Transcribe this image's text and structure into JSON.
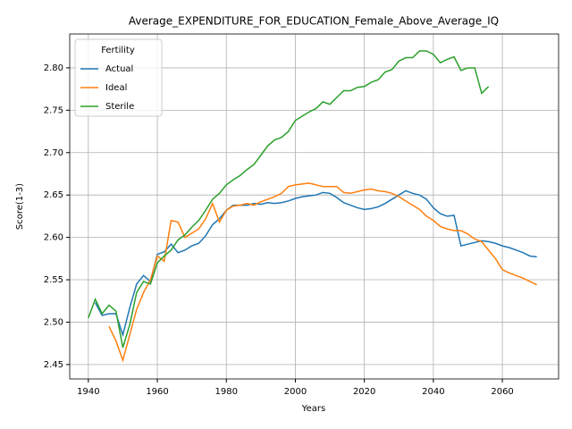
{
  "chart_data": {
    "type": "line",
    "title": "Average_EXPENDITURE_FOR_EDUCATION_Female_Above_Average_IQ",
    "x_label": "Years",
    "y_label": "Score(1-3)",
    "legend_title": "Fertility",
    "legend_loc": "upper left",
    "grid": true,
    "x": [
      1940,
      1942,
      1944,
      1946,
      1948,
      1950,
      1952,
      1954,
      1956,
      1958,
      1960,
      1962,
      1964,
      1966,
      1968,
      1970,
      1972,
      1974,
      1976,
      1978,
      1980,
      1982,
      1984,
      1986,
      1988,
      1990,
      1992,
      1994,
      1996,
      1998,
      2000,
      2002,
      2004,
      2006,
      2008,
      2010,
      2012,
      2014,
      2016,
      2018,
      2020,
      2022,
      2024,
      2026,
      2028,
      2030,
      2032,
      2034,
      2036,
      2038,
      2040,
      2042,
      2044,
      2046,
      2048,
      2050,
      2052,
      2054,
      2056,
      2058,
      2060,
      2062,
      2064,
      2066,
      2068,
      2070
    ],
    "series": [
      {
        "name": "Actual",
        "color": "#1f77b4",
        "values": [
          null,
          2.523,
          2.508,
          2.51,
          2.51,
          2.485,
          2.517,
          2.545,
          2.555,
          2.548,
          2.58,
          2.583,
          2.592,
          2.582,
          2.585,
          2.59,
          2.593,
          2.602,
          2.615,
          2.622,
          2.632,
          2.638,
          2.638,
          2.638,
          2.64,
          2.639,
          2.641,
          2.64,
          2.641,
          2.643,
          2.646,
          2.648,
          2.649,
          2.65,
          2.653,
          2.652,
          2.647,
          2.641,
          2.638,
          2.635,
          2.633,
          2.634,
          2.636,
          2.64,
          2.645,
          2.65,
          2.655,
          2.652,
          2.65,
          2.645,
          2.635,
          2.628,
          2.625,
          2.626,
          2.59,
          2.592,
          2.594,
          2.596,
          2.595,
          2.593,
          2.59,
          2.588,
          2.585,
          2.582,
          2.578,
          2.577
        ]
      },
      {
        "name": "Ideal",
        "color": "#ff7f0e",
        "values": [
          null,
          null,
          null,
          2.495,
          2.478,
          2.455,
          2.485,
          2.515,
          2.535,
          2.55,
          2.578,
          2.572,
          2.62,
          2.618,
          2.6,
          2.605,
          2.61,
          2.622,
          2.64,
          2.618,
          2.632,
          2.637,
          2.638,
          2.64,
          2.638,
          2.642,
          2.645,
          2.648,
          2.652,
          2.66,
          2.662,
          2.663,
          2.664,
          2.662,
          2.66,
          2.66,
          2.66,
          2.653,
          2.652,
          2.654,
          2.656,
          2.657,
          2.655,
          2.654,
          2.652,
          2.648,
          2.643,
          2.638,
          2.633,
          2.625,
          2.62,
          2.613,
          2.61,
          2.608,
          2.608,
          2.604,
          2.598,
          2.595,
          2.585,
          2.575,
          2.562,
          2.558,
          2.555,
          2.552,
          2.548,
          2.544
        ]
      },
      {
        "name": "Sterile",
        "color": "#2ca02c",
        "values": [
          2.505,
          2.527,
          2.51,
          2.52,
          2.513,
          2.47,
          2.497,
          2.535,
          2.548,
          2.545,
          2.57,
          2.578,
          2.585,
          2.597,
          2.603,
          2.612,
          2.62,
          2.632,
          2.645,
          2.652,
          2.662,
          2.668,
          2.673,
          2.68,
          2.686,
          2.697,
          2.708,
          2.715,
          2.718,
          2.725,
          2.738,
          2.743,
          2.748,
          2.752,
          2.76,
          2.757,
          2.765,
          2.773,
          2.773,
          2.777,
          2.778,
          2.783,
          2.786,
          2.795,
          2.798,
          2.808,
          2.812,
          2.812,
          2.82,
          2.82,
          2.816,
          2.806,
          2.81,
          2.813,
          2.797,
          2.8,
          2.8,
          2.77,
          2.778,
          null,
          null,
          null,
          null,
          null,
          null,
          null
        ]
      }
    ],
    "xlim": [
      1934.6,
      2076.3
    ],
    "xticks": [
      1940,
      1960,
      1980,
      2000,
      2020,
      2040,
      2060
    ],
    "ylim": [
      2.433,
      2.84
    ],
    "yticks": [
      2.45,
      {
        "value": 2.5,
        "label": "2.50"
      },
      2.55,
      {
        "value": 2.6,
        "label": "2.60"
      },
      2.65,
      {
        "value": 2.7,
        "label": "2.70"
      },
      2.75,
      {
        "value": 2.8,
        "label": "2.80"
      }
    ]
  }
}
